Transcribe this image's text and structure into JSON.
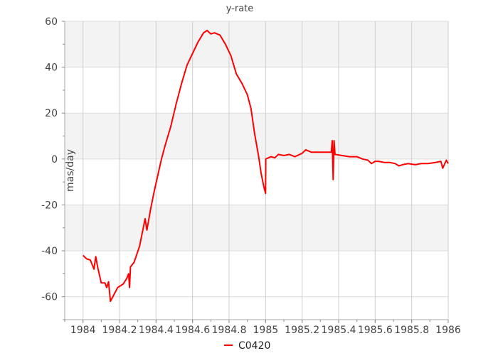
{
  "chart_data": {
    "type": "line",
    "title": "y-rate",
    "xlabel": "",
    "ylabel": "mas/day",
    "xlim": [
      1983.9,
      1986
    ],
    "ylim": [
      -70,
      60
    ],
    "x_ticks": [
      "1984",
      "1984.2",
      "1984.4",
      "1984.6",
      "1984.8",
      "1985",
      "1985.2",
      "1985.4",
      "1985.6",
      "1985.8",
      "1986"
    ],
    "x_tick_values": [
      1984,
      1984.2,
      1984.4,
      1984.6,
      1984.8,
      1985,
      1985.2,
      1985.4,
      1985.6,
      1985.8,
      1986
    ],
    "y_ticks": [
      "60",
      "40",
      "20",
      "0",
      "-20",
      "-40",
      "-60"
    ],
    "y_tick_values": [
      60,
      40,
      20,
      0,
      -20,
      -40,
      -60
    ],
    "grid": true,
    "legend_position": "bottom",
    "series": [
      {
        "name": "C0420",
        "color": "#ff0000",
        "x": [
          1984.0,
          1984.02,
          1984.04,
          1984.06,
          1984.07,
          1984.08,
          1984.1,
          1984.12,
          1984.13,
          1984.14,
          1984.15,
          1984.17,
          1984.19,
          1984.22,
          1984.24,
          1984.25,
          1984.255,
          1984.26,
          1984.28,
          1984.31,
          1984.33,
          1984.34,
          1984.35,
          1984.37,
          1984.39,
          1984.41,
          1984.43,
          1984.45,
          1984.48,
          1984.51,
          1984.54,
          1984.57,
          1984.6,
          1984.63,
          1984.66,
          1984.68,
          1984.7,
          1984.72,
          1984.75,
          1984.78,
          1984.81,
          1984.84,
          1984.87,
          1984.9,
          1984.92,
          1984.94,
          1984.96,
          1984.975,
          1984.99,
          1985.0,
          1985.001,
          1985.03,
          1985.05,
          1985.07,
          1985.1,
          1985.13,
          1985.16,
          1985.2,
          1985.22,
          1985.25,
          1985.3,
          1985.36,
          1985.365,
          1985.37,
          1985.375,
          1985.38,
          1985.42,
          1985.46,
          1985.5,
          1985.53,
          1985.56,
          1985.58,
          1985.6,
          1985.62,
          1985.65,
          1985.68,
          1985.71,
          1985.73,
          1985.75,
          1985.78,
          1985.82,
          1985.85,
          1985.89,
          1985.93,
          1985.96,
          1985.97,
          1985.99,
          1986.0
        ],
        "y": [
          -42,
          -43.5,
          -44,
          -48,
          -42.5,
          -47,
          -54,
          -54,
          -56,
          -53.5,
          -62,
          -59,
          -56,
          -54.5,
          -52,
          -50,
          -56,
          -47,
          -45,
          -38,
          -30,
          -26,
          -31,
          -22,
          -14,
          -7,
          0,
          6,
          14,
          24,
          33,
          41,
          46,
          51,
          55,
          56,
          54.5,
          55,
          54,
          50,
          45,
          37,
          33,
          28,
          22,
          11,
          2,
          -6,
          -12,
          -15,
          0,
          1,
          0.5,
          2,
          1.5,
          2,
          1,
          2.5,
          4,
          3,
          3,
          3,
          8,
          -9,
          8,
          2,
          1.5,
          1,
          1,
          0,
          -0.5,
          -2,
          -1,
          -1,
          -1.5,
          -1.5,
          -2,
          -3,
          -2.5,
          -2,
          -2.5,
          -2,
          -2,
          -1.5,
          -1,
          -4,
          -0.5,
          -2
        ]
      }
    ]
  }
}
